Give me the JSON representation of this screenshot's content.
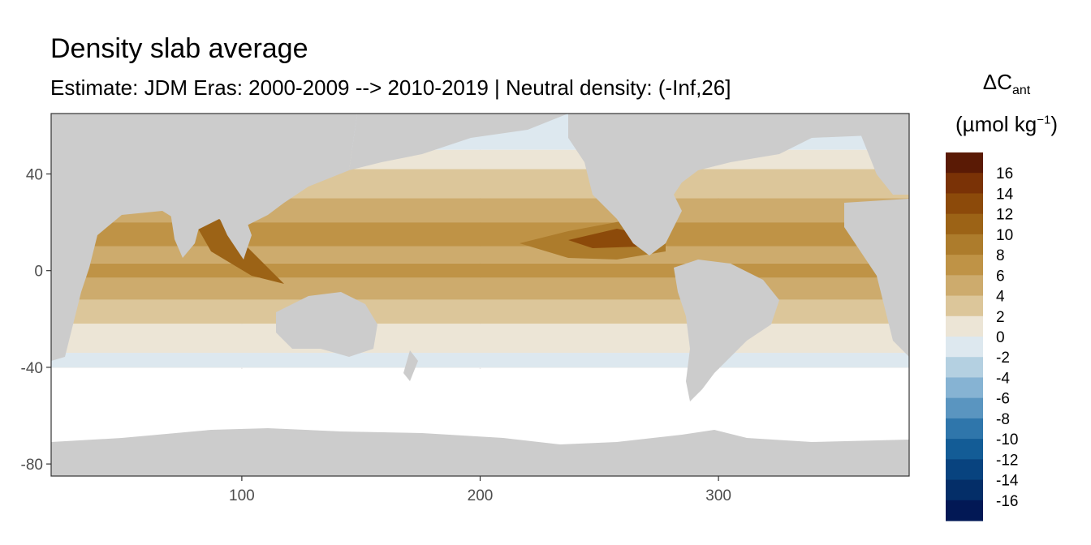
{
  "title": "Density slab average",
  "subtitle": "Estimate: JDM Eras: 2000-2009 --> 2010-2019 | Neutral density: (-Inf,26]",
  "legend": {
    "symbol": "ΔC",
    "symbol_sub": "ant",
    "unit_prefix": "(µmol kg",
    "unit_sup": "−1",
    "unit_suffix": ")",
    "breaks": [
      "16",
      "14",
      "12",
      "10",
      "8",
      "6",
      "4",
      "2",
      "0",
      "-2",
      "-4",
      "-6",
      "-8",
      "-10",
      "-12",
      "-14",
      "-16"
    ],
    "colors": [
      "#5a1a05",
      "#7a3206",
      "#8c4a0a",
      "#9c6316",
      "#ad7c2c",
      "#bf9346",
      "#cdab6d",
      "#dcc69a",
      "#ece5d6",
      "#dde8ef",
      "#b4d0e1",
      "#86b3d3",
      "#5a95c0",
      "#2f76ab",
      "#135c96",
      "#08437f",
      "#042e68",
      "#021855"
    ]
  },
  "chart_data": {
    "type": "map",
    "title": "Density slab average",
    "subtitle": "Estimate: JDM Eras: 2000-2009 --> 2010-2019 | Neutral density: (-Inf,26]",
    "xlim": [
      20,
      380
    ],
    "ylim": [
      -85,
      65
    ],
    "x_ticks": [
      100,
      200,
      300
    ],
    "y_ticks": [
      40,
      0,
      -40,
      -80
    ],
    "x_tick_labels": [
      "100",
      "200",
      "300"
    ],
    "y_tick_labels": [
      "40",
      "0",
      "-40",
      "-80"
    ],
    "grid": true,
    "legend_position": "right"
  }
}
